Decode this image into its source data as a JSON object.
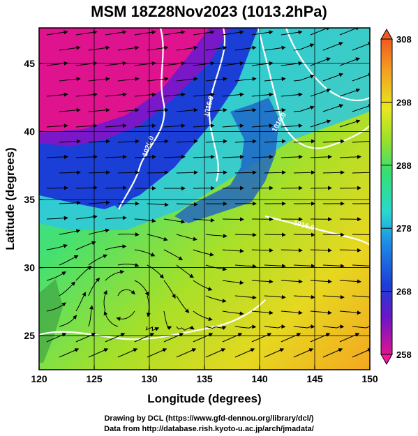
{
  "title": "MSM 18Z28Nov2023 (1013.2hPa)",
  "xaxis": {
    "label": "Longitude (degrees)",
    "ticks": [
      "120",
      "125",
      "130",
      "135",
      "140",
      "145",
      "150"
    ],
    "range": [
      120,
      150
    ]
  },
  "yaxis": {
    "label": "Latitude  (degrees)",
    "ticks": [
      "25",
      "30",
      "35",
      "40",
      "45"
    ],
    "range": [
      22.5,
      47.6
    ]
  },
  "colorbar": {
    "ticks": [
      "258",
      "268",
      "278",
      "288",
      "298",
      "308"
    ],
    "range": [
      258,
      308
    ]
  },
  "contour_labels": [
    "1016.0",
    "1020.0",
    "1016.0",
    "1016.0"
  ],
  "credits": {
    "line1": "Drawing by DCL (https://www.gfd-dennou.org/library/dcl/)",
    "line2": "Data from http://database.rish.kyoto-u.ac.jp/arch/jmadata/"
  },
  "colors": {
    "cold": "#e0138f",
    "cool": "#1b3fd6",
    "mid": "#28d8d0",
    "warm": "#5ee04a",
    "hot": "#f4b020",
    "contour": "#ffffff",
    "land": "#1c60c8"
  }
}
